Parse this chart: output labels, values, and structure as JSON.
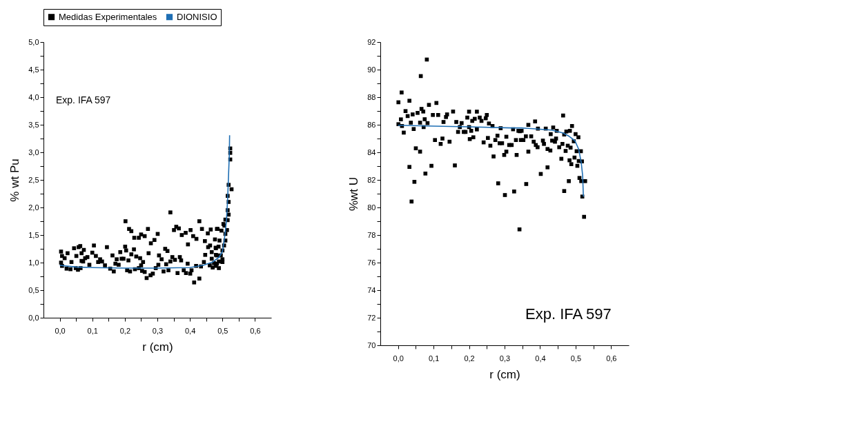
{
  "chart_data": [
    {
      "type": "scatter",
      "xlabel": "r (cm)",
      "ylabel": "% wt Pu",
      "legend": "top",
      "grid": false,
      "annotations": [
        "Exp. IFA 597"
      ],
      "xlim": [
        -0.05,
        0.65
      ],
      "ylim": [
        0,
        5
      ],
      "xticks": [
        {
          "value": 0,
          "label": "0,0"
        },
        {
          "value": 0.05,
          "label": null
        },
        {
          "value": 0.1,
          "label": "0,1"
        },
        {
          "value": 0.15,
          "label": null
        },
        {
          "value": 0.2,
          "label": "0,2"
        },
        {
          "value": 0.25,
          "label": null
        },
        {
          "value": 0.3,
          "label": "0,3"
        },
        {
          "value": 0.35,
          "label": null
        },
        {
          "value": 0.4,
          "label": "0,4"
        },
        {
          "value": 0.45,
          "label": null
        },
        {
          "value": 0.5,
          "label": "0,5"
        },
        {
          "value": 0.55,
          "label": null
        },
        {
          "value": 0.6,
          "label": "0,6"
        }
      ],
      "yticks": [
        {
          "value": 0,
          "label": "0,0"
        },
        {
          "value": 0.25,
          "label": null
        },
        {
          "value": 0.5,
          "label": "0,5"
        },
        {
          "value": 0.75,
          "label": null
        },
        {
          "value": 1,
          "label": "1,0"
        },
        {
          "value": 1.25,
          "label": null
        },
        {
          "value": 1.5,
          "label": "1,5"
        },
        {
          "value": 1.75,
          "label": null
        },
        {
          "value": 2,
          "label": "2,0"
        },
        {
          "value": 2.25,
          "label": null
        },
        {
          "value": 2.5,
          "label": "2,5"
        },
        {
          "value": 2.75,
          "label": null
        },
        {
          "value": 3,
          "label": "3,0"
        },
        {
          "value": 3.25,
          "label": null
        },
        {
          "value": 3.5,
          "label": "3,5"
        },
        {
          "value": 3.75,
          "label": null
        },
        {
          "value": 4,
          "label": "4,0"
        },
        {
          "value": 4.25,
          "label": null
        },
        {
          "value": 4.5,
          "label": "4,5"
        },
        {
          "value": 4.75,
          "label": null
        },
        {
          "value": 5,
          "label": "5,0"
        }
      ],
      "series": [
        {
          "name": "Medidas Experimentales",
          "marker": "square",
          "color": "#000000",
          "x": [
            0.004,
            0.007,
            0.015,
            0.004,
            0.007,
            0.021,
            0.024,
            0.033,
            0.036,
            0.044,
            0.051,
            0.049,
            0.056,
            0.058,
            0.063,
            0.067,
            0.067,
            0.064,
            0.074,
            0.072,
            0.078,
            0.085,
            0.091,
            0.1,
            0.105,
            0.111,
            0.118,
            0.124,
            0.13,
            0.139,
            0.145,
            0.155,
            0.162,
            0.166,
            0.171,
            0.175,
            0.181,
            0.186,
            0.19,
            0.196,
            0.201,
            0.202,
            0.204,
            0.207,
            0.211,
            0.213,
            0.216,
            0.22,
            0.22,
            0.228,
            0.229,
            0.231,
            0.235,
            0.243,
            0.243,
            0.247,
            0.25,
            0.25,
            0.253,
            0.256,
            0.261,
            0.261,
            0.267,
            0.271,
            0.273,
            0.279,
            0.28,
            0.286,
            0.291,
            0.295,
            0.301,
            0.303,
            0.305,
            0.313,
            0.319,
            0.324,
            0.327,
            0.331,
            0.334,
            0.34,
            0.34,
            0.346,
            0.351,
            0.354,
            0.358,
            0.362,
            0.366,
            0.369,
            0.373,
            0.375,
            0.381,
            0.387,
            0.388,
            0.394,
            0.393,
            0.401,
            0.402,
            0.405,
            0.41,
            0.413,
            0.419,
            0.42,
            0.429,
            0.429,
            0.434,
            0.437,
            0.443,
            0.447,
            0.446,
            0.455,
            0.456,
            0.464,
            0.462,
            0.467,
            0.467,
            0.461,
            0.47,
            0.477,
            0.479,
            0.48,
            0.483,
            0.524,
            0.524,
            0.524,
            0.519,
            0.528,
            0.516,
            0.519,
            0.516,
            0.519,
            0.509,
            0.516,
            0.503,
            0.506,
            0.514,
            0.497,
            0.485,
            0.509,
            0.509,
            0.491,
            0.505,
            0.488,
            0.48,
            0.5,
            0.483,
            0.495,
            0.5,
            0.489,
            0.5,
            0.474,
            0.483,
            0.489,
            0.48
          ],
          "values": [
            1.2,
            1.12,
            1.08,
            1.0,
            0.94,
            0.89,
            1.17,
            0.88,
            1.01,
            1.26,
            1.12,
            0.9,
            0.87,
            1.28,
            1.3,
            1.17,
            1.03,
            0.9,
            1.23,
            1.02,
            1.08,
            1.1,
            0.96,
            1.18,
            1.31,
            1.12,
            1.01,
            1.06,
            1.02,
            0.95,
            1.28,
            0.89,
            1.13,
            0.84,
            0.98,
            1.06,
            0.96,
            1.19,
            1.07,
            1.07,
            1.29,
            1.75,
            1.22,
            0.86,
            1.04,
            1.61,
            0.84,
            1.57,
            1.15,
            1.24,
            1.45,
            0.88,
            1.11,
            1.45,
            0.9,
            1.08,
            1.51,
            0.95,
            0.85,
            1.01,
            1.48,
            0.83,
            0.72,
            1.61,
            1.17,
            0.77,
            1.35,
            0.8,
            1.41,
            0.9,
            1.52,
            0.96,
            1.13,
            1.06,
            0.84,
            1.25,
            0.97,
            1.21,
            0.86,
            1.91,
            1.02,
            1.1,
            1.59,
            1.05,
            1.65,
            0.81,
            1.62,
            1.1,
            1.04,
            1.5,
            0.86,
            1.54,
            0.81,
            1.33,
            0.98,
            0.8,
            1.59,
            0.86,
            1.48,
            0.64,
            0.94,
            1.43,
            1.75,
            0.71,
            0.93,
            1.61,
            1.01,
            1.14,
            1.39,
            1.53,
            1.28,
            1.6,
            1.31,
            1.19,
            1.07,
            0.95,
            0.91,
            1.42,
            1.27,
            1.14,
            1.61,
            3.07,
            2.99,
            2.87,
            2.41,
            2.33,
            2.21,
            2.1,
            1.95,
            1.87,
            1.78,
            1.77,
            1.7,
            1.67,
            1.59,
            1.58,
            1.61,
            1.52,
            1.4,
            1.4,
            1.31,
            1.29,
            1.26,
            1.22,
            1.13,
            1.13,
            1.06,
            1.02,
            1.01,
            0.99,
            0.98,
            0.9,
            0.94
          ]
        },
        {
          "name": "DIONISIO",
          "type": "line",
          "marker": "none",
          "line_style": "solid",
          "color": "#1f6fb4",
          "x": [
            0,
            0.05,
            0.1,
            0.2,
            0.3,
            0.4,
            0.44,
            0.47,
            0.49,
            0.5,
            0.506,
            0.512,
            0.516,
            0.519,
            0.521,
            0.522
          ],
          "values": [
            0.95,
            0.92,
            0.91,
            0.9,
            0.9,
            0.91,
            0.95,
            1.01,
            1.1,
            1.2,
            1.43,
            1.74,
            2.16,
            2.63,
            2.94,
            3.31
          ]
        }
      ]
    },
    {
      "type": "scatter",
      "xlabel": "r (cm)",
      "ylabel": "%wt U",
      "legend": false,
      "grid": false,
      "annotations": [
        "Exp. IFA 597"
      ],
      "xlim": [
        -0.05,
        0.65
      ],
      "ylim": [
        70,
        92
      ],
      "xticks": [
        {
          "value": 0,
          "label": "0,0"
        },
        {
          "value": 0.05,
          "label": null
        },
        {
          "value": 0.1,
          "label": "0,1"
        },
        {
          "value": 0.15,
          "label": null
        },
        {
          "value": 0.2,
          "label": "0,2"
        },
        {
          "value": 0.25,
          "label": null
        },
        {
          "value": 0.3,
          "label": "0,3"
        },
        {
          "value": 0.35,
          "label": null
        },
        {
          "value": 0.4,
          "label": "0,4"
        },
        {
          "value": 0.45,
          "label": null
        },
        {
          "value": 0.5,
          "label": "0,5"
        },
        {
          "value": 0.55,
          "label": null
        },
        {
          "value": 0.6,
          "label": "0,6"
        }
      ],
      "yticks": [
        70,
        {
          "value": 71,
          "label": null
        },
        72,
        {
          "value": 73,
          "label": null
        },
        74,
        {
          "value": 75,
          "label": null
        },
        76,
        {
          "value": 77,
          "label": null
        },
        78,
        {
          "value": 79,
          "label": null
        },
        80,
        {
          "value": 81,
          "label": null
        },
        82,
        {
          "value": 83,
          "label": null
        },
        84,
        {
          "value": 85,
          "label": null
        },
        86,
        {
          "value": 87,
          "label": null
        },
        88,
        {
          "value": 89,
          "label": null
        },
        90,
        {
          "value": 91,
          "label": null
        },
        92
      ],
      "series": [
        {
          "marker": "square",
          "color": "#000000",
          "x": [
            0.001,
            0.001,
            0.008,
            0.01,
            0.011,
            0.016,
            0.021,
            0.027,
            0.032,
            0.036,
            0.041,
            0.044,
            0.032,
            0.046,
            0.038,
            0.05,
            0.055,
            0.062,
            0.062,
            0.064,
            0.066,
            0.071,
            0.072,
            0.075,
            0.077,
            0.081,
            0.083,
            0.087,
            0.094,
            0.098,
            0.104,
            0.108,
            0.113,
            0.12,
            0.125,
            0.128,
            0.135,
            0.138,
            0.145,
            0.155,
            0.16,
            0.164,
            0.169,
            0.174,
            0.179,
            0.185,
            0.19,
            0.195,
            0.2,
            0.2,
            0.202,
            0.206,
            0.209,
            0.212,
            0.216,
            0.222,
            0.222,
            0.23,
            0.235,
            0.241,
            0.247,
            0.25,
            0.253,
            0.256,
            0.26,
            0.266,
            0.269,
            0.274,
            0.28,
            0.282,
            0.286,
            0.289,
            0.293,
            0.299,
            0.301,
            0.305,
            0.305,
            0.313,
            0.32,
            0.324,
            0.327,
            0.332,
            0.334,
            0.342,
            0.343,
            0.346,
            0.339,
            0.348,
            0.353,
            0.36,
            0.361,
            0.367,
            0.367,
            0.375,
            0.382,
            0.386,
            0.388,
            0.393,
            0.394,
            0.402,
            0.408,
            0.411,
            0.416,
            0.421,
            0.421,
            0.429,
            0.43,
            0.434,
            0.437,
            0.442,
            0.445,
            0.447,
            0.454,
            0.46,
            0.463,
            0.465,
            0.468,
            0.468,
            0.472,
            0.474,
            0.478,
            0.481,
            0.483,
            0.484,
            0.486,
            0.488,
            0.49,
            0.495,
            0.497,
            0.5,
            0.503,
            0.505,
            0.508,
            0.509,
            0.511,
            0.515,
            0.518,
            0.516,
            0.527,
            0.519,
            0.524
          ],
          "values": [
            86.04,
            87.63,
            86.39,
            88.34,
            85.91,
            85.43,
            86.99,
            86.63,
            87.74,
            86.15,
            86.75,
            85.69,
            82.94,
            81.86,
            80.43,
            84.29,
            86.86,
            84.05,
            86.15,
            89.53,
            87.15,
            86.96,
            85.83,
            86.4,
            82.46,
            90.73,
            86.12,
            87.44,
            83.02,
            86.71,
            84.89,
            87.58,
            86.71,
            84.61,
            85.0,
            86.2,
            86.56,
            86.75,
            84.77,
            86.96,
            83.05,
            86.2,
            85.48,
            85.83,
            86.12,
            85.48,
            85.48,
            86.52,
            86.95,
            85.83,
            84.96,
            85.56,
            86.28,
            85.09,
            86.43,
            86.95,
            85.66,
            86.52,
            86.28,
            84.72,
            86.47,
            86.71,
            85.04,
            86.09,
            84.48,
            85.91,
            83.7,
            84.89,
            85.21,
            81.75,
            84.66,
            85.75,
            84.66,
            83.81,
            80.9,
            85.13,
            84.05,
            84.53,
            84.53,
            85.67,
            81.16,
            84.89,
            83.81,
            78.41,
            85.53,
            84.89,
            85.56,
            85.56,
            84.89,
            85.16,
            81.7,
            85.99,
            84.05,
            85.16,
            84.77,
            86.24,
            84.53,
            84.37,
            85.72,
            82.43,
            84.85,
            84.61,
            85.72,
            84.24,
            82.91,
            84.13,
            85.32,
            84.85,
            85.8,
            84.77,
            85.0,
            85.56,
            84.37,
            83.53,
            84.61,
            86.67,
            81.19,
            85.29,
            84.1,
            85.51,
            84.48,
            81.91,
            83.42,
            85.56,
            84.34,
            83.14,
            85.91,
            84.8,
            83.62,
            85.32,
            84.08,
            83.02,
            85.09,
            83.37,
            82.14,
            84.08,
            83.34,
            81.91,
            81.91,
            80.79,
            79.32
          ]
        },
        {
          "type": "line",
          "marker": "none",
          "line_style": "solid",
          "color": "#1f6fb4",
          "x": [
            0,
            0.1,
            0.2,
            0.319,
            0.348,
            0.433,
            0.465,
            0.482,
            0.498,
            0.509,
            0.516,
            0.52,
            0.522
          ],
          "values": [
            85.96,
            85.9,
            85.85,
            85.77,
            85.77,
            85.61,
            85.4,
            85.16,
            84.85,
            84.21,
            83.25,
            82.3,
            80.79
          ]
        }
      ]
    }
  ]
}
